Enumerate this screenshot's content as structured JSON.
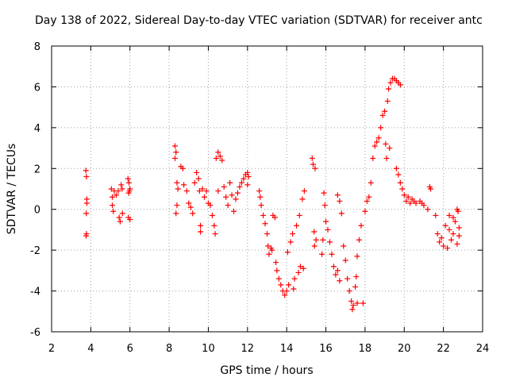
{
  "chart_data": {
    "type": "scatter",
    "title": "Day 138 of 2022, Sidereal Day-to-day VTEC variation (SDTVAR) for receiver antc",
    "xlabel": "GPS time / hours",
    "ylabel": "SDTVAR / TECUs",
    "xlim": [
      2,
      24
    ],
    "ylim": [
      -6,
      8
    ],
    "xticks": [
      "2",
      "4",
      "6",
      "8",
      "10",
      "12",
      "14",
      "16",
      "18",
      "20",
      "22",
      "24"
    ],
    "yticks": [
      "-6",
      "-4",
      "-2",
      "0",
      "2",
      "4",
      "6",
      "8"
    ],
    "grid": true,
    "marker": "plus",
    "color": "#ff0000",
    "series": [
      {
        "name": "SDTVAR",
        "points": [
          [
            3.75,
            1.9
          ],
          [
            3.78,
            1.6
          ],
          [
            3.8,
            0.5
          ],
          [
            3.77,
            -0.2
          ],
          [
            3.8,
            0.3
          ],
          [
            3.78,
            -1.2
          ],
          [
            3.76,
            -1.3
          ],
          [
            5.05,
            1.0
          ],
          [
            5.1,
            0.6
          ],
          [
            5.1,
            0.2
          ],
          [
            5.15,
            -0.1
          ],
          [
            5.2,
            0.9
          ],
          [
            5.3,
            0.7
          ],
          [
            5.4,
            0.9
          ],
          [
            5.45,
            -0.4
          ],
          [
            5.5,
            -0.6
          ],
          [
            5.55,
            1.2
          ],
          [
            5.6,
            1.0
          ],
          [
            5.62,
            -0.2
          ],
          [
            5.9,
            1.5
          ],
          [
            5.95,
            1.3
          ],
          [
            5.97,
            0.9
          ],
          [
            5.92,
            -0.4
          ],
          [
            6.0,
            -0.5
          ],
          [
            6.0,
            1.0
          ],
          [
            5.93,
            0.8
          ],
          [
            8.3,
            3.1
          ],
          [
            8.35,
            2.8
          ],
          [
            8.3,
            2.5
          ],
          [
            8.4,
            1.3
          ],
          [
            8.4,
            0.2
          ],
          [
            8.35,
            -0.2
          ],
          [
            8.45,
            1.0
          ],
          [
            8.6,
            2.1
          ],
          [
            8.7,
            2.0
          ],
          [
            8.75,
            1.2
          ],
          [
            8.9,
            0.9
          ],
          [
            9.0,
            0.3
          ],
          [
            9.1,
            0.1
          ],
          [
            9.2,
            -0.2
          ],
          [
            9.3,
            1.3
          ],
          [
            9.4,
            1.8
          ],
          [
            9.5,
            1.5
          ],
          [
            9.6,
            -0.8
          ],
          [
            9.6,
            -1.1
          ],
          [
            9.55,
            0.9
          ],
          [
            9.7,
            1.0
          ],
          [
            9.8,
            0.6
          ],
          [
            9.9,
            0.9
          ],
          [
            10.0,
            0.3
          ],
          [
            10.1,
            0.2
          ],
          [
            10.2,
            -0.3
          ],
          [
            10.3,
            -0.8
          ],
          [
            10.35,
            -1.2
          ],
          [
            10.4,
            2.5
          ],
          [
            10.5,
            2.8
          ],
          [
            10.6,
            2.6
          ],
          [
            10.7,
            2.4
          ],
          [
            10.5,
            0.9
          ],
          [
            10.8,
            1.1
          ],
          [
            10.9,
            0.6
          ],
          [
            11.0,
            0.2
          ],
          [
            11.1,
            1.3
          ],
          [
            11.2,
            0.7
          ],
          [
            11.3,
            -0.1
          ],
          [
            11.4,
            0.5
          ],
          [
            11.5,
            0.8
          ],
          [
            11.6,
            1.1
          ],
          [
            11.7,
            1.3
          ],
          [
            11.8,
            1.5
          ],
          [
            11.9,
            1.7
          ],
          [
            12.0,
            1.8
          ],
          [
            12.05,
            1.6
          ],
          [
            12.0,
            1.2
          ],
          [
            12.6,
            0.9
          ],
          [
            12.65,
            0.6
          ],
          [
            12.7,
            0.2
          ],
          [
            12.8,
            -0.3
          ],
          [
            12.9,
            -0.7
          ],
          [
            13.0,
            -1.2
          ],
          [
            13.05,
            -1.8
          ],
          [
            13.1,
            -2.2
          ],
          [
            13.2,
            -1.9
          ],
          [
            13.25,
            -2.0
          ],
          [
            13.3,
            -0.3
          ],
          [
            13.4,
            -0.4
          ],
          [
            13.45,
            -2.6
          ],
          [
            13.5,
            -3.0
          ],
          [
            13.6,
            -3.4
          ],
          [
            13.7,
            -3.7
          ],
          [
            13.8,
            -4.0
          ],
          [
            13.9,
            -4.2
          ],
          [
            14.0,
            -4.0
          ],
          [
            14.05,
            -2.1
          ],
          [
            14.1,
            -3.7
          ],
          [
            14.2,
            -1.6
          ],
          [
            14.3,
            -1.2
          ],
          [
            14.35,
            -3.9
          ],
          [
            14.4,
            -3.4
          ],
          [
            14.5,
            -0.8
          ],
          [
            14.6,
            -3.1
          ],
          [
            14.65,
            -0.3
          ],
          [
            14.7,
            -2.8
          ],
          [
            14.8,
            0.5
          ],
          [
            14.85,
            -2.9
          ],
          [
            14.9,
            0.9
          ],
          [
            15.3,
            2.5
          ],
          [
            15.35,
            2.2
          ],
          [
            15.4,
            -1.1
          ],
          [
            15.42,
            -1.8
          ],
          [
            15.45,
            2.0
          ],
          [
            15.5,
            -1.5
          ],
          [
            15.8,
            -2.2
          ],
          [
            15.85,
            -1.5
          ],
          [
            15.9,
            0.8
          ],
          [
            15.95,
            0.2
          ],
          [
            16.0,
            -0.6
          ],
          [
            16.1,
            -1.0
          ],
          [
            16.2,
            -1.6
          ],
          [
            16.3,
            -2.2
          ],
          [
            16.4,
            -2.8
          ],
          [
            16.5,
            -3.2
          ],
          [
            16.6,
            -3.0
          ],
          [
            16.7,
            -3.5
          ],
          [
            16.6,
            0.7
          ],
          [
            16.7,
            0.4
          ],
          [
            16.8,
            -0.2
          ],
          [
            16.9,
            -1.8
          ],
          [
            17.0,
            -2.5
          ],
          [
            17.1,
            -3.4
          ],
          [
            17.2,
            -4.0
          ],
          [
            17.3,
            -4.5
          ],
          [
            17.35,
            -4.9
          ],
          [
            17.4,
            -4.7
          ],
          [
            17.5,
            -3.8
          ],
          [
            17.55,
            -3.3
          ],
          [
            17.6,
            -2.3
          ],
          [
            17.6,
            -4.6
          ],
          [
            17.7,
            -1.5
          ],
          [
            17.8,
            -0.8
          ],
          [
            17.9,
            -4.6
          ],
          [
            18.0,
            -0.1
          ],
          [
            18.1,
            0.4
          ],
          [
            18.2,
            0.6
          ],
          [
            18.3,
            1.3
          ],
          [
            18.4,
            2.5
          ],
          [
            18.5,
            3.1
          ],
          [
            18.6,
            3.3
          ],
          [
            18.7,
            3.5
          ],
          [
            18.8,
            4.0
          ],
          [
            18.9,
            4.6
          ],
          [
            19.0,
            4.8
          ],
          [
            19.05,
            3.2
          ],
          [
            19.1,
            2.5
          ],
          [
            19.15,
            5.3
          ],
          [
            19.2,
            5.9
          ],
          [
            19.25,
            3.0
          ],
          [
            19.3,
            6.2
          ],
          [
            19.4,
            6.4
          ],
          [
            19.5,
            6.4
          ],
          [
            19.6,
            6.3
          ],
          [
            19.7,
            6.2
          ],
          [
            19.8,
            6.1
          ],
          [
            19.6,
            2.0
          ],
          [
            19.7,
            1.7
          ],
          [
            19.8,
            1.3
          ],
          [
            19.9,
            1.0
          ],
          [
            20.0,
            0.7
          ],
          [
            20.1,
            0.4
          ],
          [
            20.2,
            0.6
          ],
          [
            20.3,
            0.3
          ],
          [
            20.4,
            0.5
          ],
          [
            20.5,
            0.4
          ],
          [
            20.6,
            0.3
          ],
          [
            20.8,
            0.4
          ],
          [
            20.9,
            0.3
          ],
          [
            21.0,
            0.2
          ],
          [
            21.2,
            0.0
          ],
          [
            21.3,
            1.1
          ],
          [
            21.35,
            1.0
          ],
          [
            21.6,
            -0.3
          ],
          [
            21.7,
            -1.2
          ],
          [
            21.8,
            -1.6
          ],
          [
            21.9,
            -1.4
          ],
          [
            22.0,
            -1.8
          ],
          [
            22.1,
            -0.8
          ],
          [
            22.2,
            -1.9
          ],
          [
            22.3,
            -0.3
          ],
          [
            22.4,
            -1.5
          ],
          [
            22.5,
            -1.2
          ],
          [
            22.6,
            -0.6
          ],
          [
            22.7,
            -1.7
          ],
          [
            22.75,
            -0.1
          ],
          [
            22.8,
            -1.3
          ],
          [
            22.8,
            -0.9
          ],
          [
            22.7,
            0.0
          ],
          [
            22.5,
            -0.4
          ],
          [
            22.3,
            -1.0
          ]
        ]
      }
    ]
  }
}
